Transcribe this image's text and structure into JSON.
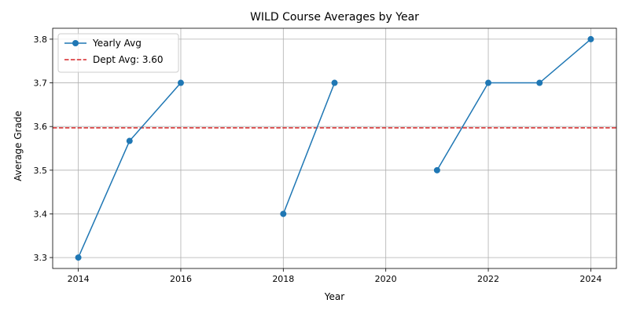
{
  "chart_data": {
    "type": "line",
    "title": "WILD Course Averages by Year",
    "xlabel": "Year",
    "ylabel": "Average Grade",
    "xlim": [
      2013.5,
      2024.5
    ],
    "ylim": [
      3.275,
      3.825
    ],
    "x_ticks": [
      2014,
      2016,
      2018,
      2020,
      2022,
      2024
    ],
    "y_ticks": [
      3.3,
      3.4,
      3.5,
      3.6,
      3.7,
      3.8
    ],
    "y_tick_labels": [
      "3.3",
      "3.4",
      "3.5",
      "3.6",
      "3.7",
      "3.8"
    ],
    "grid": true,
    "legend_position": "top-left",
    "series": [
      {
        "name": "Yearly Avg",
        "color": "#1f77b4",
        "marker": "circle",
        "x": [
          2014,
          2015,
          2016,
          2017,
          2018,
          2019,
          2020,
          2021,
          2022,
          2023,
          2024
        ],
        "y": [
          3.3,
          3.567,
          3.7,
          null,
          3.4,
          3.7,
          null,
          3.5,
          3.7,
          3.7,
          3.8
        ]
      }
    ],
    "reference_line": {
      "name": "Dept Avg: 3.60",
      "value": 3.597,
      "color": "#d62728",
      "style": "dashed"
    }
  }
}
